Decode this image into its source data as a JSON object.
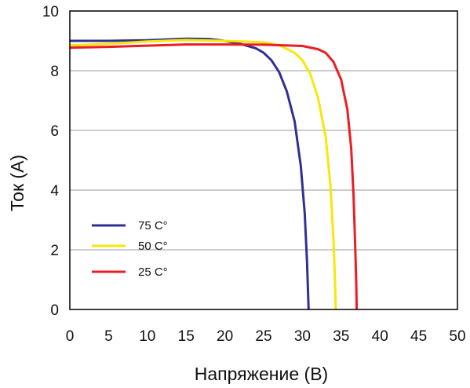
{
  "chart_data": {
    "type": "line",
    "title": "",
    "xlabel": "Напряжение (В)",
    "ylabel": "Ток (А)",
    "xlim": [
      0,
      50
    ],
    "ylim": [
      0,
      10
    ],
    "x_ticks": [
      0,
      5,
      10,
      15,
      20,
      25,
      30,
      35,
      40,
      45,
      50
    ],
    "y_ticks": [
      0,
      2,
      4,
      6,
      8,
      10
    ],
    "grid": "horizontal",
    "legend_position": "left-middle",
    "series": [
      {
        "name": "75 C°",
        "color": "#2e3192",
        "points": [
          [
            0,
            9.0
          ],
          [
            5,
            9.0
          ],
          [
            10,
            9.02
          ],
          [
            15,
            9.07
          ],
          [
            18,
            9.06
          ],
          [
            20,
            9.0
          ],
          [
            22,
            8.9
          ],
          [
            24,
            8.75
          ],
          [
            25,
            8.6
          ],
          [
            26,
            8.35
          ],
          [
            27,
            7.95
          ],
          [
            28,
            7.3
          ],
          [
            29,
            6.3
          ],
          [
            29.8,
            4.8
          ],
          [
            30.3,
            3.2
          ],
          [
            30.6,
            1.6
          ],
          [
            30.8,
            0.0
          ]
        ]
      },
      {
        "name": "50 C°",
        "color": "#f7e70a",
        "points": [
          [
            0,
            8.85
          ],
          [
            5,
            8.9
          ],
          [
            10,
            8.98
          ],
          [
            15,
            9.03
          ],
          [
            20,
            9.0
          ],
          [
            25,
            8.95
          ],
          [
            27,
            8.85
          ],
          [
            29,
            8.6
          ],
          [
            30,
            8.35
          ],
          [
            31,
            7.9
          ],
          [
            32,
            7.1
          ],
          [
            33,
            5.8
          ],
          [
            33.6,
            4.2
          ],
          [
            34,
            2.4
          ],
          [
            34.2,
            1.0
          ],
          [
            34.3,
            0.0
          ]
        ]
      },
      {
        "name": "25 C°",
        "color": "#ec1c24",
        "points": [
          [
            0,
            8.77
          ],
          [
            5,
            8.8
          ],
          [
            10,
            8.84
          ],
          [
            15,
            8.88
          ],
          [
            20,
            8.88
          ],
          [
            25,
            8.87
          ],
          [
            30,
            8.83
          ],
          [
            32,
            8.72
          ],
          [
            33,
            8.6
          ],
          [
            34,
            8.3
          ],
          [
            35,
            7.7
          ],
          [
            35.8,
            6.7
          ],
          [
            36.3,
            5.4
          ],
          [
            36.6,
            3.8
          ],
          [
            36.8,
            2.2
          ],
          [
            36.95,
            0.8
          ],
          [
            37,
            0.0
          ]
        ]
      }
    ]
  }
}
